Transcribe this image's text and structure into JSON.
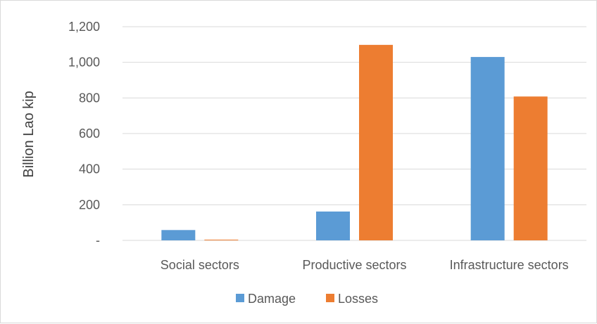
{
  "chart_data": {
    "type": "bar",
    "title": "",
    "xlabel": "",
    "ylabel": "Billion Lao kip",
    "categories": [
      "Social sectors",
      "Productive sectors",
      "Infrastructure sectors"
    ],
    "series": [
      {
        "name": "Damage",
        "color": "#5b9bd5",
        "values": [
          58,
          162,
          1030
        ]
      },
      {
        "name": "Losses",
        "color": "#ed7d31",
        "values": [
          4,
          1098,
          808
        ]
      }
    ],
    "ylim": [
      0,
      1200
    ],
    "y_ticks": [
      {
        "value": 0,
        "label": "-"
      },
      {
        "value": 200,
        "label": "200"
      },
      {
        "value": 400,
        "label": "400"
      },
      {
        "value": 600,
        "label": "600"
      },
      {
        "value": 800,
        "label": "800"
      },
      {
        "value": 1000,
        "label": "1,000"
      },
      {
        "value": 1200,
        "label": "1,200"
      }
    ],
    "grid": true,
    "gridline_color": "#d9d9d9",
    "legend_position": "bottom"
  }
}
